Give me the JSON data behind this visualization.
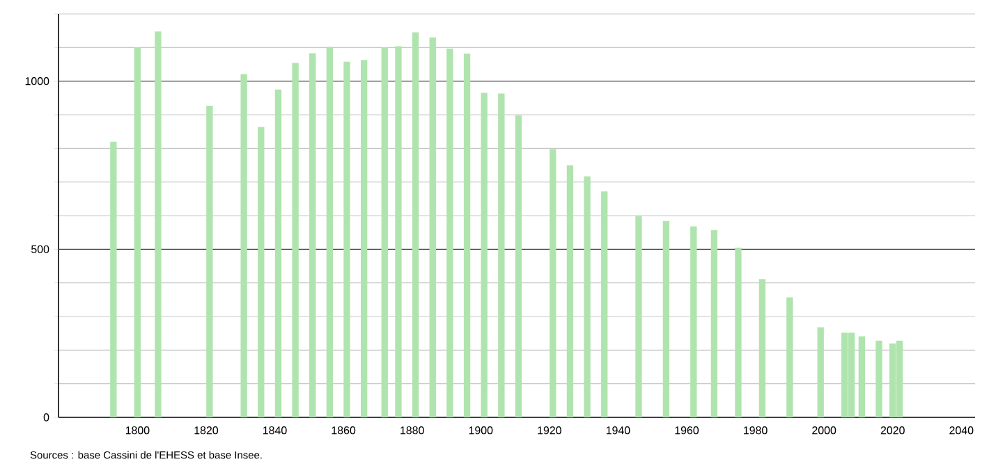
{
  "chart_data": {
    "type": "bar",
    "x": [
      1793,
      1800,
      1806,
      1821,
      1831,
      1836,
      1841,
      1846,
      1851,
      1856,
      1861,
      1866,
      1872,
      1876,
      1881,
      1886,
      1891,
      1896,
      1901,
      1906,
      1911,
      1921,
      1926,
      1931,
      1936,
      1946,
      1954,
      1962,
      1968,
      1975,
      1982,
      1990,
      1999,
      2006,
      2008,
      2011,
      2016,
      2020,
      2022
    ],
    "values": [
      820,
      1100,
      1148,
      927,
      1021,
      864,
      975,
      1054,
      1083,
      1102,
      1058,
      1063,
      1100,
      1104,
      1145,
      1130,
      1097,
      1082,
      965,
      963,
      898,
      798,
      750,
      717,
      672,
      599,
      584,
      568,
      557,
      505,
      411,
      357,
      268,
      252,
      252,
      241,
      228,
      220,
      228
    ],
    "color": "#b0e4ae",
    "xlim": [
      1777,
      2044
    ],
    "xticks": [
      1800,
      1820,
      1840,
      1860,
      1880,
      1900,
      1920,
      1940,
      1960,
      1980,
      2000,
      2020,
      2040
    ],
    "ylim": [
      0,
      1200
    ],
    "yticks": [
      0,
      {
        "value": 100,
        "label": null
      },
      {
        "value": 200,
        "label": null
      },
      {
        "value": 300,
        "label": null
      },
      {
        "value": 400,
        "label": null
      },
      500,
      {
        "value": 600,
        "label": null
      },
      {
        "value": 700,
        "label": null
      },
      {
        "value": 800,
        "label": null
      },
      {
        "value": 900,
        "label": null
      },
      1000,
      {
        "value": 1100,
        "label": null
      },
      {
        "value": 1200,
        "label": null
      }
    ],
    "grid": "y",
    "annotations": [
      "Sources : base Cassini de l'EHESS et base Insee."
    ]
  }
}
